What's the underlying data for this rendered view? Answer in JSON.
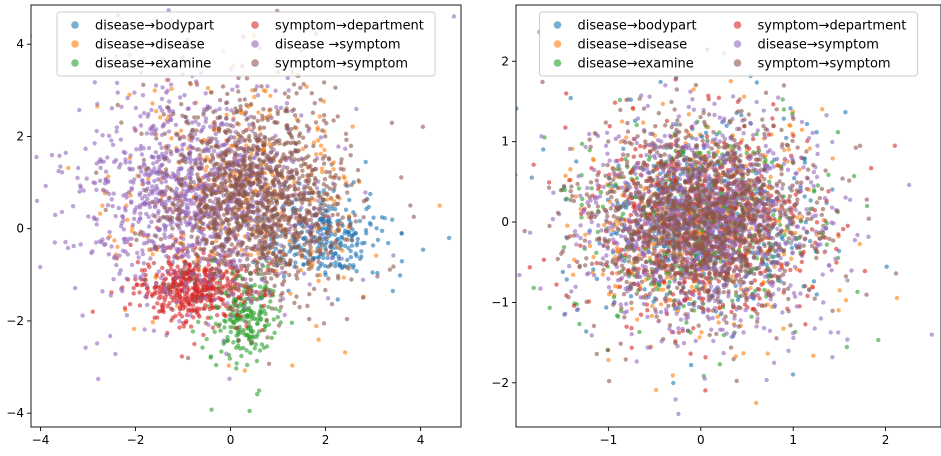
{
  "colors": {
    "disease→bodypart": "#1f77b4",
    "disease→disease": "#ff7f0e",
    "disease→examine": "#2ca02c",
    "symptom→department": "#d62728",
    "disease →symptom": "#9467bd",
    "symptom→symptom": "#8c564b"
  },
  "chart_data": [
    {
      "type": "scatter",
      "title": "",
      "xlabel": "",
      "ylabel": "",
      "xlim": [
        -4.2,
        4.85
      ],
      "ylim": [
        -4.3,
        4.85
      ],
      "xticks": [
        -4,
        -2,
        0,
        2,
        4
      ],
      "yticks": [
        -4,
        -2,
        0,
        2,
        4
      ],
      "xtick_labels": [
        "−4",
        "−2",
        "0",
        "2",
        "4"
      ],
      "ytick_labels": [
        "−4",
        "−2",
        "0",
        "2",
        "4"
      ],
      "grid": false,
      "legend": {
        "location": "upper center",
        "columns": 2
      },
      "series": [
        {
          "name": "disease→bodypart",
          "center": [
            2.0,
            -0.2
          ],
          "spread": [
            0.7,
            0.5
          ],
          "approx_points": 250,
          "sample_points": [
            [
              2.0,
              0.0
            ],
            [
              2.4,
              -0.1
            ],
            [
              1.6,
              -0.3
            ],
            [
              3.6,
              -0.1
            ],
            [
              4.6,
              -0.2
            ],
            [
              2.0,
              -1.0
            ]
          ]
        },
        {
          "name": "disease→disease",
          "center": [
            0.2,
            0.6
          ],
          "spread": [
            1.3,
            1.3
          ],
          "approx_points": 350,
          "sample_points": [
            [
              -1.0,
              2.0
            ],
            [
              2.4,
              1.1
            ],
            [
              4.4,
              0.5
            ],
            [
              0.7,
              3.0
            ],
            [
              -2.7,
              0.5
            ]
          ]
        },
        {
          "name": "disease→examine",
          "center": [
            0.3,
            -1.9
          ],
          "spread": [
            0.4,
            0.5
          ],
          "approx_points": 220,
          "sample_points": [
            [
              0.3,
              -1.9
            ],
            [
              0.8,
              -1.7
            ],
            [
              0.2,
              -2.6
            ],
            [
              0.4,
              -3.95
            ]
          ]
        },
        {
          "name": "symptom→department",
          "center": [
            -0.8,
            -1.3
          ],
          "spread": [
            0.6,
            0.4
          ],
          "approx_points": 450,
          "sample_points": [
            [
              -1.2,
              -1.2
            ],
            [
              -0.4,
              -1.0
            ],
            [
              -0.7,
              -1.5
            ],
            [
              -1.8,
              -1.2
            ],
            [
              -2.9,
              -1.8
            ]
          ]
        },
        {
          "name": "disease →symptom",
          "center": [
            -0.8,
            0.7
          ],
          "spread": [
            1.2,
            1.2
          ],
          "approx_points": 1100,
          "sample_points": [
            [
              -1.5,
              1.5
            ],
            [
              -0.5,
              0.5
            ],
            [
              0.0,
              -0.5
            ],
            [
              -3.7,
              -0.3
            ],
            [
              4.7,
              4.6
            ]
          ]
        },
        {
          "name": "symptom→symptom",
          "center": [
            0.6,
            0.6
          ],
          "spread": [
            1.0,
            1.1
          ],
          "approx_points": 1300,
          "sample_points": [
            [
              0.0,
              0.2
            ],
            [
              0.6,
              1.5
            ],
            [
              0.3,
              2.8
            ],
            [
              2.0,
              0.4
            ],
            [
              -2.3,
              2.3
            ]
          ]
        }
      ]
    },
    {
      "type": "scatter",
      "title": "",
      "xlabel": "",
      "ylabel": "",
      "xlim": [
        -2.0,
        2.6
      ],
      "ylim": [
        -2.55,
        2.7
      ],
      "xticks": [
        -1,
        0,
        1,
        2
      ],
      "yticks": [
        -2,
        -1,
        0,
        1,
        2
      ],
      "xtick_labels": [
        "−1",
        "0",
        "1",
        "2"
      ],
      "ytick_labels": [
        "−2",
        "−1",
        "0",
        "1",
        "2"
      ],
      "grid": false,
      "legend": {
        "location": "upper center",
        "columns": 2
      },
      "series": [
        {
          "name": "disease→bodypart",
          "center": [
            0.0,
            0.0
          ],
          "spread": [
            0.65,
            0.65
          ],
          "approx_points": 400,
          "sample_points": [
            [
              0.2,
              0.1
            ],
            [
              -0.8,
              0.4
            ],
            [
              0.8,
              -0.5
            ]
          ]
        },
        {
          "name": "disease→disease",
          "center": [
            0.0,
            0.0
          ],
          "spread": [
            0.65,
            0.65
          ],
          "approx_points": 450,
          "sample_points": [
            [
              0.5,
              0.9
            ],
            [
              -1.2,
              -0.3
            ],
            [
              0.6,
              -2.25
            ]
          ]
        },
        {
          "name": "disease→examine",
          "center": [
            0.0,
            0.0
          ],
          "spread": [
            0.65,
            0.65
          ],
          "approx_points": 400,
          "sample_points": [
            [
              -1.5,
              0.4
            ],
            [
              1.8,
              0.2
            ],
            [
              0.9,
              1.4
            ]
          ]
        },
        {
          "name": "symptom→department",
          "center": [
            0.0,
            0.0
          ],
          "spread": [
            0.65,
            0.65
          ],
          "approx_points": 500,
          "sample_points": [
            [
              -0.3,
              -0.9
            ],
            [
              1.1,
              -0.4
            ],
            [
              2.1,
              0.95
            ]
          ]
        },
        {
          "name": "disease→symptom",
          "center": [
            0.0,
            0.0
          ],
          "spread": [
            0.65,
            0.65
          ],
          "approx_points": 1200,
          "sample_points": [
            [
              -0.2,
              0.3
            ],
            [
              1.3,
              -1.2
            ],
            [
              2.5,
              -1.4
            ]
          ]
        },
        {
          "name": "symptom→symptom",
          "center": [
            0.0,
            0.0
          ],
          "spread": [
            0.6,
            0.6
          ],
          "approx_points": 1300,
          "sample_points": [
            [
              0.0,
              0.0
            ],
            [
              -0.6,
              1.0
            ],
            [
              0.9,
              1.7
            ]
          ]
        }
      ]
    }
  ]
}
